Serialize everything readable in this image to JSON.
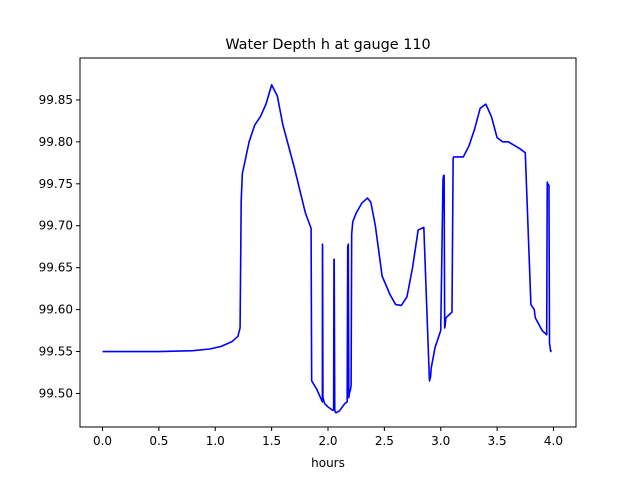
{
  "chart_data": {
    "type": "line",
    "title": "Water Depth h at gauge 110",
    "xlabel": "hours",
    "ylabel": "",
    "xlim": [
      -0.2,
      4.2
    ],
    "ylim": [
      99.46,
      99.9
    ],
    "grid": false,
    "legend": "none",
    "line_color": "#0000ff",
    "x_ticks": [
      0.0,
      0.5,
      1.0,
      1.5,
      2.0,
      2.5,
      3.0,
      3.5,
      4.0
    ],
    "x_tick_labels": [
      "0.0",
      "0.5",
      "1.0",
      "1.5",
      "2.0",
      "2.5",
      "3.0",
      "3.5",
      "4.0"
    ],
    "y_ticks": [
      99.5,
      99.55,
      99.6,
      99.65,
      99.7,
      99.75,
      99.8,
      99.85
    ],
    "y_tick_labels": [
      "99.50",
      "99.55",
      "99.60",
      "99.65",
      "99.70",
      "99.75",
      "99.80",
      "99.85"
    ],
    "series": [
      {
        "x": [
          0.0,
          0.5,
          0.8,
          0.95,
          1.05,
          1.15,
          1.2,
          1.22,
          1.23,
          1.24,
          1.3,
          1.35,
          1.4,
          1.45,
          1.5,
          1.55,
          1.6,
          1.7,
          1.8,
          1.85,
          1.855,
          1.9,
          1.95,
          1.951,
          1.952,
          1.955,
          1.97,
          2.0,
          2.04,
          2.05,
          2.053,
          2.055,
          2.06,
          2.065,
          2.07,
          2.1,
          2.15,
          2.17,
          2.175,
          2.18,
          2.185,
          2.19,
          2.2,
          2.205,
          2.21,
          2.22,
          2.25,
          2.3,
          2.35,
          2.38,
          2.42,
          2.48,
          2.55,
          2.6,
          2.65,
          2.7,
          2.75,
          2.8,
          2.85,
          2.9,
          2.91,
          2.915,
          2.95,
          3.0,
          3.02,
          3.025,
          3.03,
          3.035,
          3.04,
          3.045,
          3.1,
          3.11,
          3.115,
          3.2,
          3.25,
          3.3,
          3.35,
          3.4,
          3.45,
          3.5,
          3.55,
          3.6,
          3.7,
          3.75,
          3.8,
          3.83,
          3.835,
          3.84,
          3.9,
          3.94,
          3.945,
          3.95,
          3.96,
          3.965,
          3.97,
          3.975,
          3.98
        ],
        "y": [
          99.55,
          99.55,
          99.551,
          99.553,
          99.556,
          99.562,
          99.568,
          99.578,
          99.73,
          99.762,
          99.8,
          99.82,
          99.83,
          99.845,
          99.868,
          99.855,
          99.82,
          99.77,
          99.715,
          99.697,
          99.515,
          99.505,
          99.49,
          99.678,
          99.675,
          99.495,
          99.488,
          99.484,
          99.48,
          99.48,
          99.66,
          99.66,
          99.48,
          99.478,
          99.477,
          99.479,
          99.488,
          99.49,
          99.675,
          99.678,
          99.495,
          99.5,
          99.505,
          99.51,
          99.69,
          99.705,
          99.715,
          99.727,
          99.733,
          99.728,
          99.7,
          99.64,
          99.618,
          99.606,
          99.605,
          99.615,
          99.65,
          99.695,
          99.698,
          99.515,
          99.52,
          99.53,
          99.555,
          99.575,
          99.755,
          99.76,
          99.76,
          99.578,
          99.582,
          99.59,
          99.597,
          99.78,
          99.782,
          99.782,
          99.795,
          99.815,
          99.84,
          99.845,
          99.83,
          99.805,
          99.8,
          99.8,
          99.792,
          99.787,
          99.606,
          99.6,
          99.594,
          99.59,
          99.575,
          99.57,
          99.752,
          99.75,
          99.748,
          99.56,
          99.555,
          99.55,
          99.552
        ]
      }
    ]
  }
}
